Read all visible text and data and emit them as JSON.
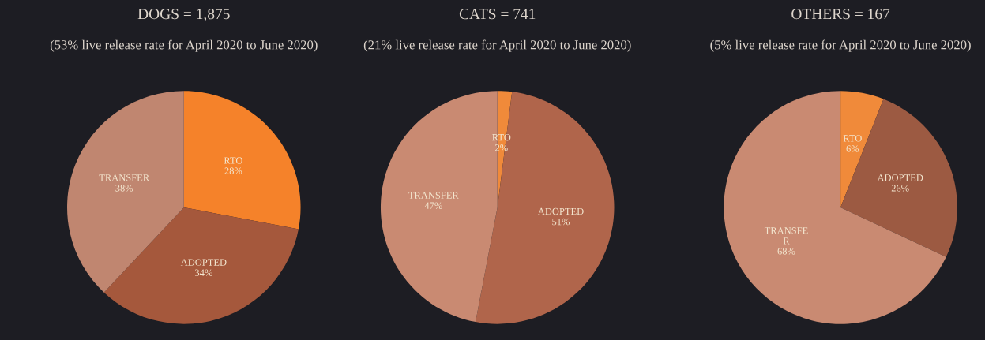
{
  "chart_data": [
    {
      "type": "pie",
      "title": "DOGS = 1,875",
      "subtitle": "(53% live release rate for April 2020 to June 2020)",
      "categories": [
        "RTO",
        "ADOPTED",
        "TRANSFER"
      ],
      "values": [
        28,
        34,
        38
      ],
      "value_labels": [
        "28%",
        "34%",
        "38%"
      ],
      "colors": [
        "#f5822a",
        "#a5583c",
        "#c08670"
      ]
    },
    {
      "type": "pie",
      "title": "CATS = 741",
      "subtitle": "(21% live release rate for April 2020 to June 2020)",
      "categories": [
        "RTO",
        "ADOPTED",
        "TRANSFER"
      ],
      "values": [
        2,
        51,
        47
      ],
      "value_labels": [
        "2%",
        "51%",
        "47%"
      ],
      "colors": [
        "#f08a3a",
        "#b0654b",
        "#c98a72"
      ]
    },
    {
      "type": "pie",
      "title": "OTHERS = 167",
      "subtitle": "(5% live release rate for April 2020 to June 2020)",
      "categories": [
        "RTO",
        "ADOPTED",
        "TRANSFE\nR"
      ],
      "values": [
        6,
        26,
        68
      ],
      "value_labels": [
        "6%",
        "26%",
        "68%"
      ],
      "colors": [
        "#f08a3a",
        "#9c5a42",
        "#c98a72"
      ]
    }
  ]
}
